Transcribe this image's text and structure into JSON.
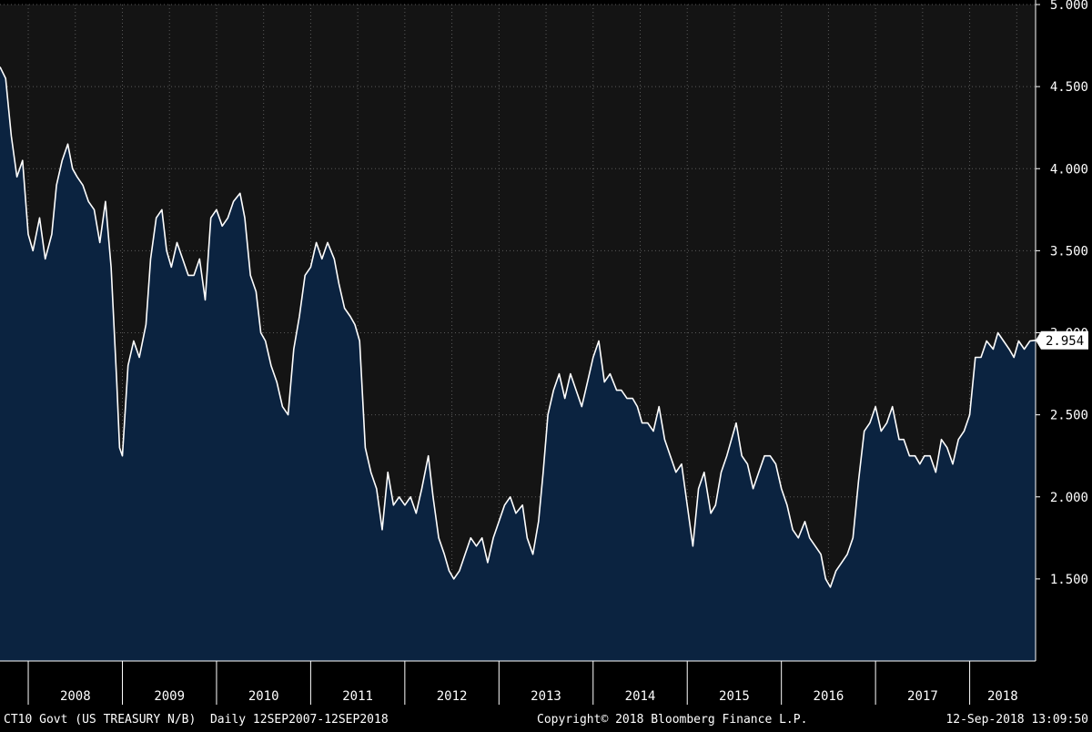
{
  "chart_data": {
    "type": "area",
    "title": "",
    "xlabel": "",
    "ylabel": "",
    "xlim": [
      2007.7,
      2018.7
    ],
    "ylim": [
      1.0,
      5.0
    ],
    "yticks": [
      1.5,
      2.0,
      2.5,
      3.0,
      3.5,
      4.0,
      4.5,
      5.0
    ],
    "ytick_labels": [
      "1.500",
      "2.000",
      "2.500",
      "3.000",
      "3.500",
      "4.000",
      "4.500",
      "5.000"
    ],
    "xticks": [
      "2008",
      "2009",
      "2010",
      "2011",
      "2012",
      "2013",
      "2014",
      "2015",
      "2016",
      "2017",
      "2018"
    ],
    "grid": true,
    "last_value_label": "2.954",
    "colors": {
      "background": "#000000",
      "plot_background": "#141414",
      "area_fill": "#0b2340",
      "line": "#ffffff",
      "grid": "#5a5a5a"
    },
    "series": [
      {
        "x": [
          2007.7,
          2007.76,
          2007.82,
          2007.88,
          2007.94,
          2008.0,
          2008.05,
          2008.12,
          2008.18,
          2008.25,
          2008.3,
          2008.36,
          2008.42,
          2008.47,
          2008.52,
          2008.58,
          2008.64,
          2008.7,
          2008.76,
          2008.82,
          2008.88,
          2008.94,
          2008.97,
          2009.0,
          2009.06,
          2009.12,
          2009.18,
          2009.25,
          2009.3,
          2009.36,
          2009.42,
          2009.47,
          2009.52,
          2009.58,
          2009.64,
          2009.7,
          2009.76,
          2009.82,
          2009.88,
          2009.94,
          2010.0,
          2010.06,
          2010.12,
          2010.18,
          2010.25,
          2010.3,
          2010.36,
          2010.42,
          2010.47,
          2010.52,
          2010.58,
          2010.64,
          2010.7,
          2010.76,
          2010.82,
          2010.88,
          2010.94,
          2011.0,
          2011.06,
          2011.12,
          2011.18,
          2011.25,
          2011.3,
          2011.36,
          2011.42,
          2011.47,
          2011.52,
          2011.58,
          2011.64,
          2011.7,
          2011.76,
          2011.82,
          2011.88,
          2011.94,
          2012.0,
          2012.06,
          2012.12,
          2012.18,
          2012.25,
          2012.3,
          2012.36,
          2012.42,
          2012.47,
          2012.52,
          2012.58,
          2012.64,
          2012.7,
          2012.76,
          2012.82,
          2012.88,
          2012.94,
          2013.0,
          2013.06,
          2013.12,
          2013.18,
          2013.25,
          2013.3,
          2013.36,
          2013.42,
          2013.47,
          2013.52,
          2013.58,
          2013.64,
          2013.7,
          2013.76,
          2013.82,
          2013.88,
          2013.94,
          2014.0,
          2014.06,
          2014.12,
          2014.18,
          2014.25,
          2014.3,
          2014.36,
          2014.42,
          2014.47,
          2014.52,
          2014.58,
          2014.64,
          2014.7,
          2014.76,
          2014.82,
          2014.88,
          2014.94,
          2015.0,
          2015.06,
          2015.12,
          2015.18,
          2015.25,
          2015.3,
          2015.36,
          2015.42,
          2015.47,
          2015.52,
          2015.58,
          2015.64,
          2015.7,
          2015.76,
          2015.82,
          2015.88,
          2015.94,
          2016.0,
          2016.06,
          2016.12,
          2016.18,
          2016.25,
          2016.3,
          2016.36,
          2016.42,
          2016.47,
          2016.52,
          2016.58,
          2016.64,
          2016.7,
          2016.76,
          2016.82,
          2016.88,
          2016.94,
          2017.0,
          2017.06,
          2017.12,
          2017.18,
          2017.25,
          2017.3,
          2017.36,
          2017.42,
          2017.47,
          2017.52,
          2017.58,
          2017.64,
          2017.7,
          2017.76,
          2017.82,
          2017.88,
          2017.94,
          2018.0,
          2018.06,
          2018.12,
          2018.18,
          2018.25,
          2018.3,
          2018.36,
          2018.42,
          2018.47,
          2018.52,
          2018.58,
          2018.64,
          2018.7
        ],
        "values": [
          4.62,
          4.55,
          4.2,
          3.95,
          4.05,
          3.6,
          3.5,
          3.7,
          3.45,
          3.6,
          3.9,
          4.05,
          4.15,
          4.0,
          3.95,
          3.9,
          3.8,
          3.75,
          3.55,
          3.8,
          3.4,
          2.7,
          2.3,
          2.25,
          2.8,
          2.95,
          2.85,
          3.05,
          3.45,
          3.7,
          3.75,
          3.5,
          3.4,
          3.55,
          3.45,
          3.35,
          3.35,
          3.45,
          3.2,
          3.7,
          3.75,
          3.65,
          3.7,
          3.8,
          3.85,
          3.7,
          3.35,
          3.25,
          3.0,
          2.95,
          2.8,
          2.7,
          2.55,
          2.5,
          2.9,
          3.1,
          3.35,
          3.4,
          3.55,
          3.45,
          3.55,
          3.45,
          3.3,
          3.15,
          3.1,
          3.05,
          2.95,
          2.3,
          2.15,
          2.05,
          1.8,
          2.15,
          1.95,
          2.0,
          1.95,
          2.0,
          1.9,
          2.05,
          2.25,
          2.0,
          1.75,
          1.65,
          1.55,
          1.5,
          1.55,
          1.65,
          1.75,
          1.7,
          1.75,
          1.6,
          1.75,
          1.85,
          1.95,
          2.0,
          1.9,
          1.95,
          1.75,
          1.65,
          1.85,
          2.15,
          2.5,
          2.65,
          2.75,
          2.6,
          2.75,
          2.65,
          2.55,
          2.7,
          2.85,
          2.95,
          2.7,
          2.75,
          2.65,
          2.65,
          2.6,
          2.6,
          2.55,
          2.45,
          2.45,
          2.4,
          2.55,
          2.35,
          2.25,
          2.15,
          2.2,
          1.95,
          1.7,
          2.05,
          2.15,
          1.9,
          1.95,
          2.15,
          2.25,
          2.35,
          2.45,
          2.25,
          2.2,
          2.05,
          2.15,
          2.25,
          2.25,
          2.2,
          2.05,
          1.95,
          1.8,
          1.75,
          1.85,
          1.75,
          1.7,
          1.65,
          1.5,
          1.45,
          1.55,
          1.6,
          1.65,
          1.75,
          2.1,
          2.4,
          2.45,
          2.55,
          2.4,
          2.45,
          2.55,
          2.35,
          2.35,
          2.25,
          2.25,
          2.2,
          2.25,
          2.25,
          2.15,
          2.35,
          2.3,
          2.2,
          2.35,
          2.4,
          2.5,
          2.85,
          2.85,
          2.95,
          2.9,
          3.0,
          2.95,
          2.9,
          2.85,
          2.95,
          2.9,
          2.95,
          2.954
        ]
      }
    ]
  },
  "footer": {
    "left": "CT10 Govt (US TREASURY N/B)  Daily 12SEP2007-12SEP2018",
    "center": "Copyright© 2018 Bloomberg Finance L.P.",
    "right": "12-Sep-2018 13:09:50"
  }
}
